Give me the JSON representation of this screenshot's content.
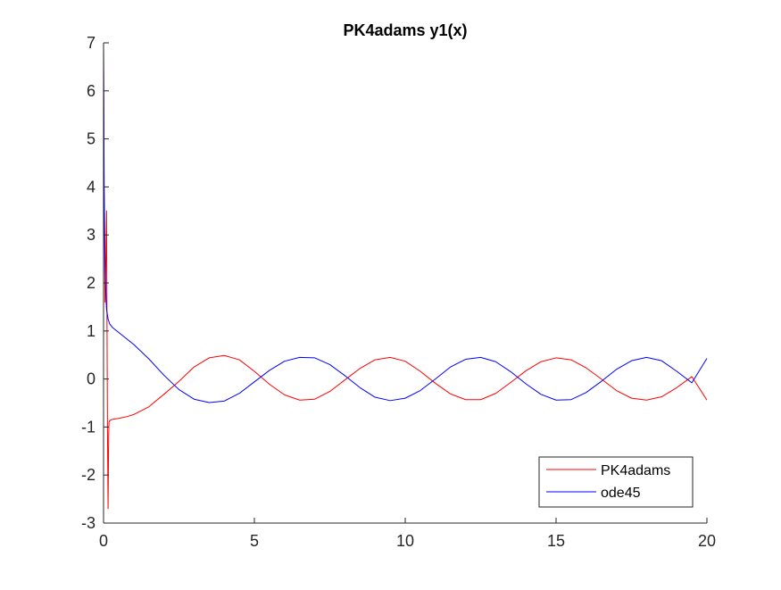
{
  "chart_data": {
    "type": "line",
    "title": "PK4adams y1(x)",
    "xlabel": "",
    "ylabel": "",
    "xlim": [
      0,
      20
    ],
    "ylim": [
      -3,
      7
    ],
    "x_ticks": [
      0,
      5,
      10,
      15,
      20
    ],
    "y_ticks": [
      -3,
      -2,
      -1,
      0,
      1,
      2,
      3,
      4,
      5,
      6,
      7
    ],
    "grid": false,
    "legend_position": "bottom-right",
    "series": [
      {
        "name": "PK4adams",
        "color": "#ff0000",
        "x": [
          0,
          0.02,
          0.05,
          0.08,
          0.1,
          0.11,
          0.13,
          0.15,
          0.17,
          0.18,
          0.2,
          0.25,
          0.3,
          0.5,
          0.8,
          1.0,
          1.5,
          2.0,
          2.5,
          3.0,
          3.5,
          4.0,
          4.5,
          5.0,
          5.5,
          6.0,
          6.5,
          7.0,
          7.5,
          8.0,
          8.5,
          9.0,
          9.5,
          10.0,
          10.5,
          11.0,
          11.5,
          12.0,
          12.5,
          13.0,
          13.5,
          14.0,
          14.5,
          15.0,
          15.5,
          16.0,
          16.5,
          17.0,
          17.5,
          18.0,
          18.5,
          19.0,
          19.5,
          20.0
        ],
        "y": [
          7.0,
          3.8,
          1.6,
          2.6,
          3.5,
          1.8,
          -1.0,
          -2.7,
          -1.2,
          -0.9,
          -0.87,
          -0.85,
          -0.84,
          -0.82,
          -0.78,
          -0.74,
          -0.58,
          -0.32,
          -0.05,
          0.25,
          0.44,
          0.49,
          0.4,
          0.16,
          -0.11,
          -0.33,
          -0.44,
          -0.42,
          -0.26,
          -0.02,
          0.22,
          0.4,
          0.45,
          0.37,
          0.16,
          -0.09,
          -0.31,
          -0.43,
          -0.43,
          -0.3,
          -0.07,
          0.17,
          0.36,
          0.44,
          0.4,
          0.23,
          0.0,
          -0.24,
          -0.4,
          -0.44,
          -0.37,
          -0.18,
          0.05,
          -0.44
        ]
      },
      {
        "name": "ode45",
        "color": "#0000ff",
        "x": [
          0,
          0.02,
          0.05,
          0.08,
          0.1,
          0.15,
          0.2,
          0.3,
          0.5,
          0.8,
          1.0,
          1.5,
          2.0,
          2.5,
          3.0,
          3.5,
          4.0,
          4.5,
          5.0,
          5.5,
          6.0,
          6.5,
          7.0,
          7.5,
          8.0,
          8.5,
          9.0,
          9.5,
          10.0,
          10.5,
          11.0,
          11.5,
          12.0,
          12.5,
          13.0,
          13.5,
          14.0,
          14.5,
          15.0,
          15.5,
          16.0,
          16.5,
          17.0,
          17.5,
          18.0,
          18.5,
          19.0,
          19.5,
          20.0
        ],
        "y": [
          7.0,
          4.0,
          2.4,
          1.7,
          1.45,
          1.25,
          1.15,
          1.07,
          0.97,
          0.82,
          0.72,
          0.42,
          0.08,
          -0.22,
          -0.42,
          -0.49,
          -0.46,
          -0.3,
          -0.06,
          0.18,
          0.37,
          0.45,
          0.44,
          0.3,
          0.07,
          -0.18,
          -0.38,
          -0.45,
          -0.4,
          -0.24,
          0.0,
          0.25,
          0.41,
          0.45,
          0.36,
          0.15,
          -0.1,
          -0.32,
          -0.44,
          -0.43,
          -0.28,
          -0.05,
          0.2,
          0.38,
          0.45,
          0.38,
          0.16,
          -0.08,
          0.43
        ]
      }
    ]
  }
}
